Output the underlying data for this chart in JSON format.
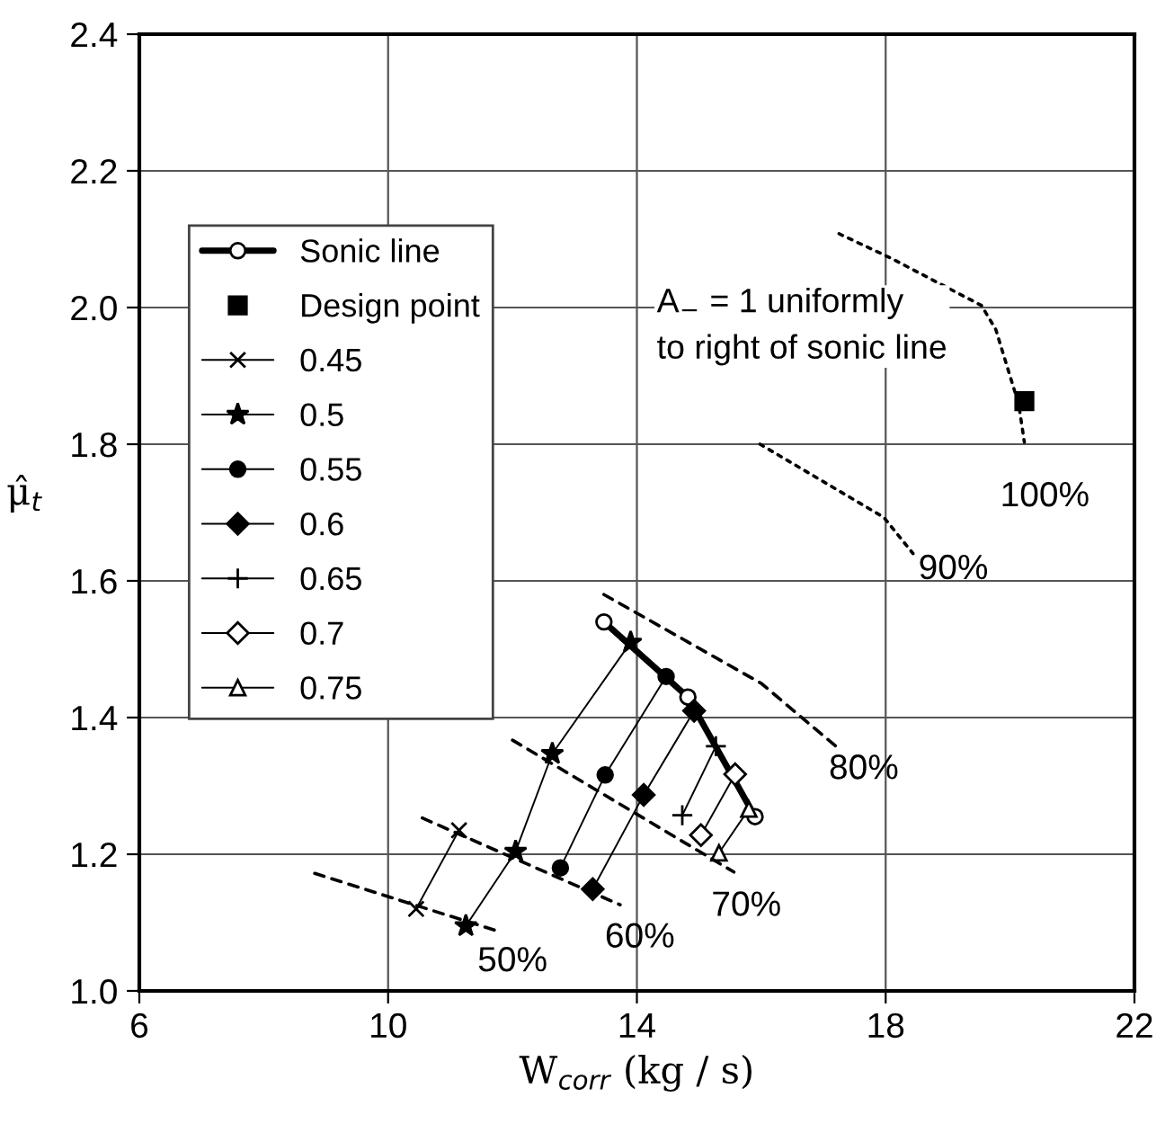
{
  "chart_data": {
    "type": "line",
    "xlabel": "W$_{corr}$ (kg / s)",
    "ylabel": "μ̂$_{t}$",
    "xlim": [
      6,
      22
    ],
    "xticks": [
      6,
      10,
      14,
      18,
      22
    ],
    "ylim": [
      1.0,
      2.4
    ],
    "yticks": [
      {
        "value": 1.0,
        "label": "1.0"
      },
      1.2,
      1.4,
      1.6,
      1.8,
      {
        "value": 2.0,
        "label": "2.0"
      },
      2.2,
      2.4
    ],
    "grid": true,
    "legend": "top left",
    "series": [
      {
        "name": "Sonic line",
        "color": "#000000",
        "marker": "circle open",
        "line_style": "solid",
        "x": [
          13.47,
          14.82,
          15.9
        ],
        "values": [
          1.54,
          1.43,
          1.255
        ]
      },
      {
        "name": "Design point",
        "type": "scatter",
        "color": "#000000",
        "marker": "square",
        "x": [
          20.23
        ],
        "values": [
          1.863
        ]
      },
      {
        "name": "0.45",
        "color": "#000000",
        "marker": "cross",
        "line_style": "solid",
        "x": [
          10.45,
          11.14
        ],
        "values": [
          1.12,
          1.235
        ]
      },
      {
        "name": "0.5",
        "color": "#000000",
        "marker": "star",
        "line_style": "solid",
        "x": [
          11.25,
          12.05,
          12.64,
          13.9
        ],
        "values": [
          1.095,
          1.204,
          1.347,
          1.51
        ]
      },
      {
        "name": "0.55",
        "color": "#000000",
        "marker": "circle",
        "line_style": "solid",
        "x": [
          12.77,
          13.49,
          14.47
        ],
        "values": [
          1.18,
          1.316,
          1.46
        ]
      },
      {
        "name": "0.6",
        "color": "#000000",
        "marker": "diamond",
        "line_style": "solid",
        "x": [
          13.29,
          14.11,
          14.92
        ],
        "values": [
          1.149,
          1.287,
          1.41
        ]
      },
      {
        "name": "0.65",
        "color": "#000000",
        "marker": "plus",
        "line_style": "solid",
        "x": [
          14.73,
          15.27
        ],
        "values": [
          1.257,
          1.358
        ]
      },
      {
        "name": "0.7",
        "color": "#000000",
        "marker": "diamond open",
        "line_style": "solid",
        "x": [
          15.03,
          15.58
        ],
        "values": [
          1.228,
          1.317
        ]
      },
      {
        "name": "0.75",
        "color": "#000000",
        "marker": "triangle open",
        "line_style": "solid",
        "x": [
          15.32,
          15.8
        ],
        "values": [
          1.202,
          1.266
        ]
      },
      {
        "color": "#000000",
        "marker": "none",
        "line_style": "dashed",
        "x": [
          8.82,
          11.71
        ],
        "values": [
          1.172,
          1.089
        ]
      },
      {
        "color": "#000000",
        "marker": "none",
        "line_style": "dashed",
        "x": [
          10.55,
          13.73
        ],
        "values": [
          1.253,
          1.126
        ]
      },
      {
        "color": "#000000",
        "marker": "none",
        "line_style": "dashed",
        "x": [
          12.0,
          15.56
        ],
        "values": [
          1.367,
          1.174
        ]
      },
      {
        "color": "#000000",
        "marker": "none",
        "line_style": "dashed",
        "x": [
          13.47,
          16.0,
          17.2
        ],
        "values": [
          1.58,
          1.45,
          1.358
        ]
      },
      {
        "color": "#000000",
        "marker": "none",
        "line_style": "dotted",
        "x": [
          15.98,
          17.97,
          18.44
        ],
        "values": [
          1.8,
          1.693,
          1.64
        ]
      },
      {
        "color": "#000000",
        "marker": "none",
        "line_style": "dotted",
        "x": [
          17.25,
          18.09,
          19.54,
          19.77,
          20.14,
          20.23
        ],
        "values": [
          2.108,
          2.072,
          2.003,
          1.968,
          1.858,
          1.803
        ]
      }
    ],
    "annotations": [
      "50%",
      "60%",
      "70%",
      "80%",
      "90%",
      "100%",
      "A$_{−}$ = 1 uniformly\nto right of sonic line"
    ]
  }
}
